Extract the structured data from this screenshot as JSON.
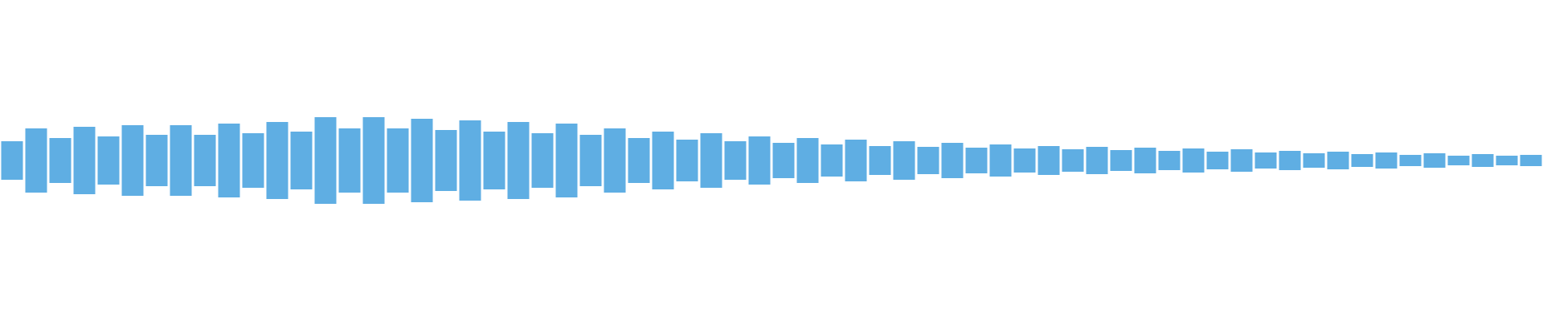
{
  "chart_data": {
    "type": "waveform",
    "color": "#5faee3",
    "ylim": [
      -1,
      1
    ],
    "values": [
      0.12,
      0.2,
      0.14,
      0.21,
      0.15,
      0.22,
      0.16,
      0.22,
      0.16,
      0.23,
      0.17,
      0.24,
      0.18,
      0.27,
      0.2,
      0.27,
      0.2,
      0.26,
      0.19,
      0.25,
      0.18,
      0.24,
      0.17,
      0.23,
      0.16,
      0.2,
      0.14,
      0.18,
      0.13,
      0.17,
      0.12,
      0.15,
      0.11,
      0.14,
      0.1,
      0.13,
      0.09,
      0.12,
      0.085,
      0.11,
      0.08,
      0.1,
      0.075,
      0.09,
      0.07,
      0.085,
      0.065,
      0.08,
      0.06,
      0.075,
      0.055,
      0.07,
      0.05,
      0.06,
      0.045,
      0.055,
      0.04,
      0.05,
      0.035,
      0.045,
      0.03,
      0.04,
      0.03,
      0.035
    ]
  }
}
